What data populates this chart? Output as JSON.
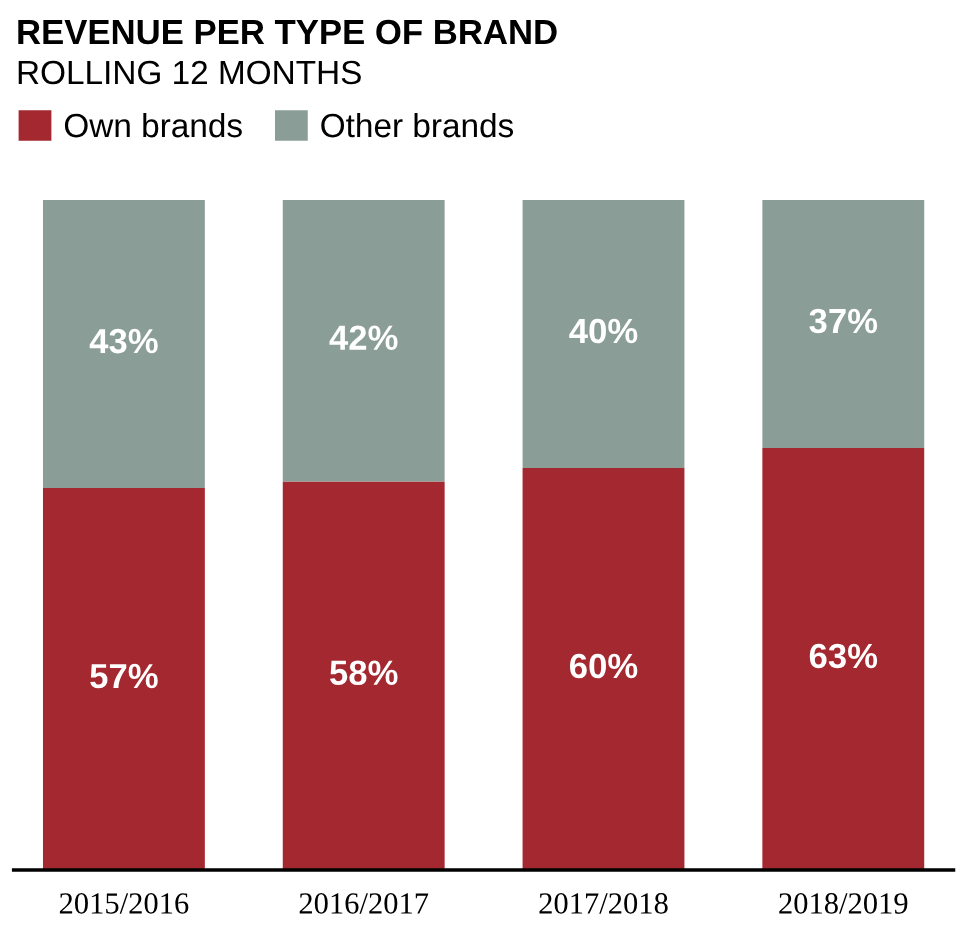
{
  "chart_data": {
    "type": "bar",
    "title": "REVENUE PER TYPE OF BRAND",
    "subtitle": "ROLLING 12 MONTHS",
    "categories": [
      "2015/2016",
      "2016/2017",
      "2017/2018",
      "2018/2019"
    ],
    "stacked": true,
    "legend": "top left",
    "series": [
      {
        "name": "Own brands",
        "color": "#a4282f",
        "values": [
          57,
          58,
          60,
          63
        ],
        "value_labels": [
          "57%",
          "58%",
          "60%",
          "63%"
        ]
      },
      {
        "name": "Other brands",
        "color": "#8a9e97",
        "values": [
          43,
          42,
          40,
          37
        ],
        "value_labels": [
          "43%",
          "42%",
          "40%",
          "37%"
        ]
      }
    ]
  }
}
